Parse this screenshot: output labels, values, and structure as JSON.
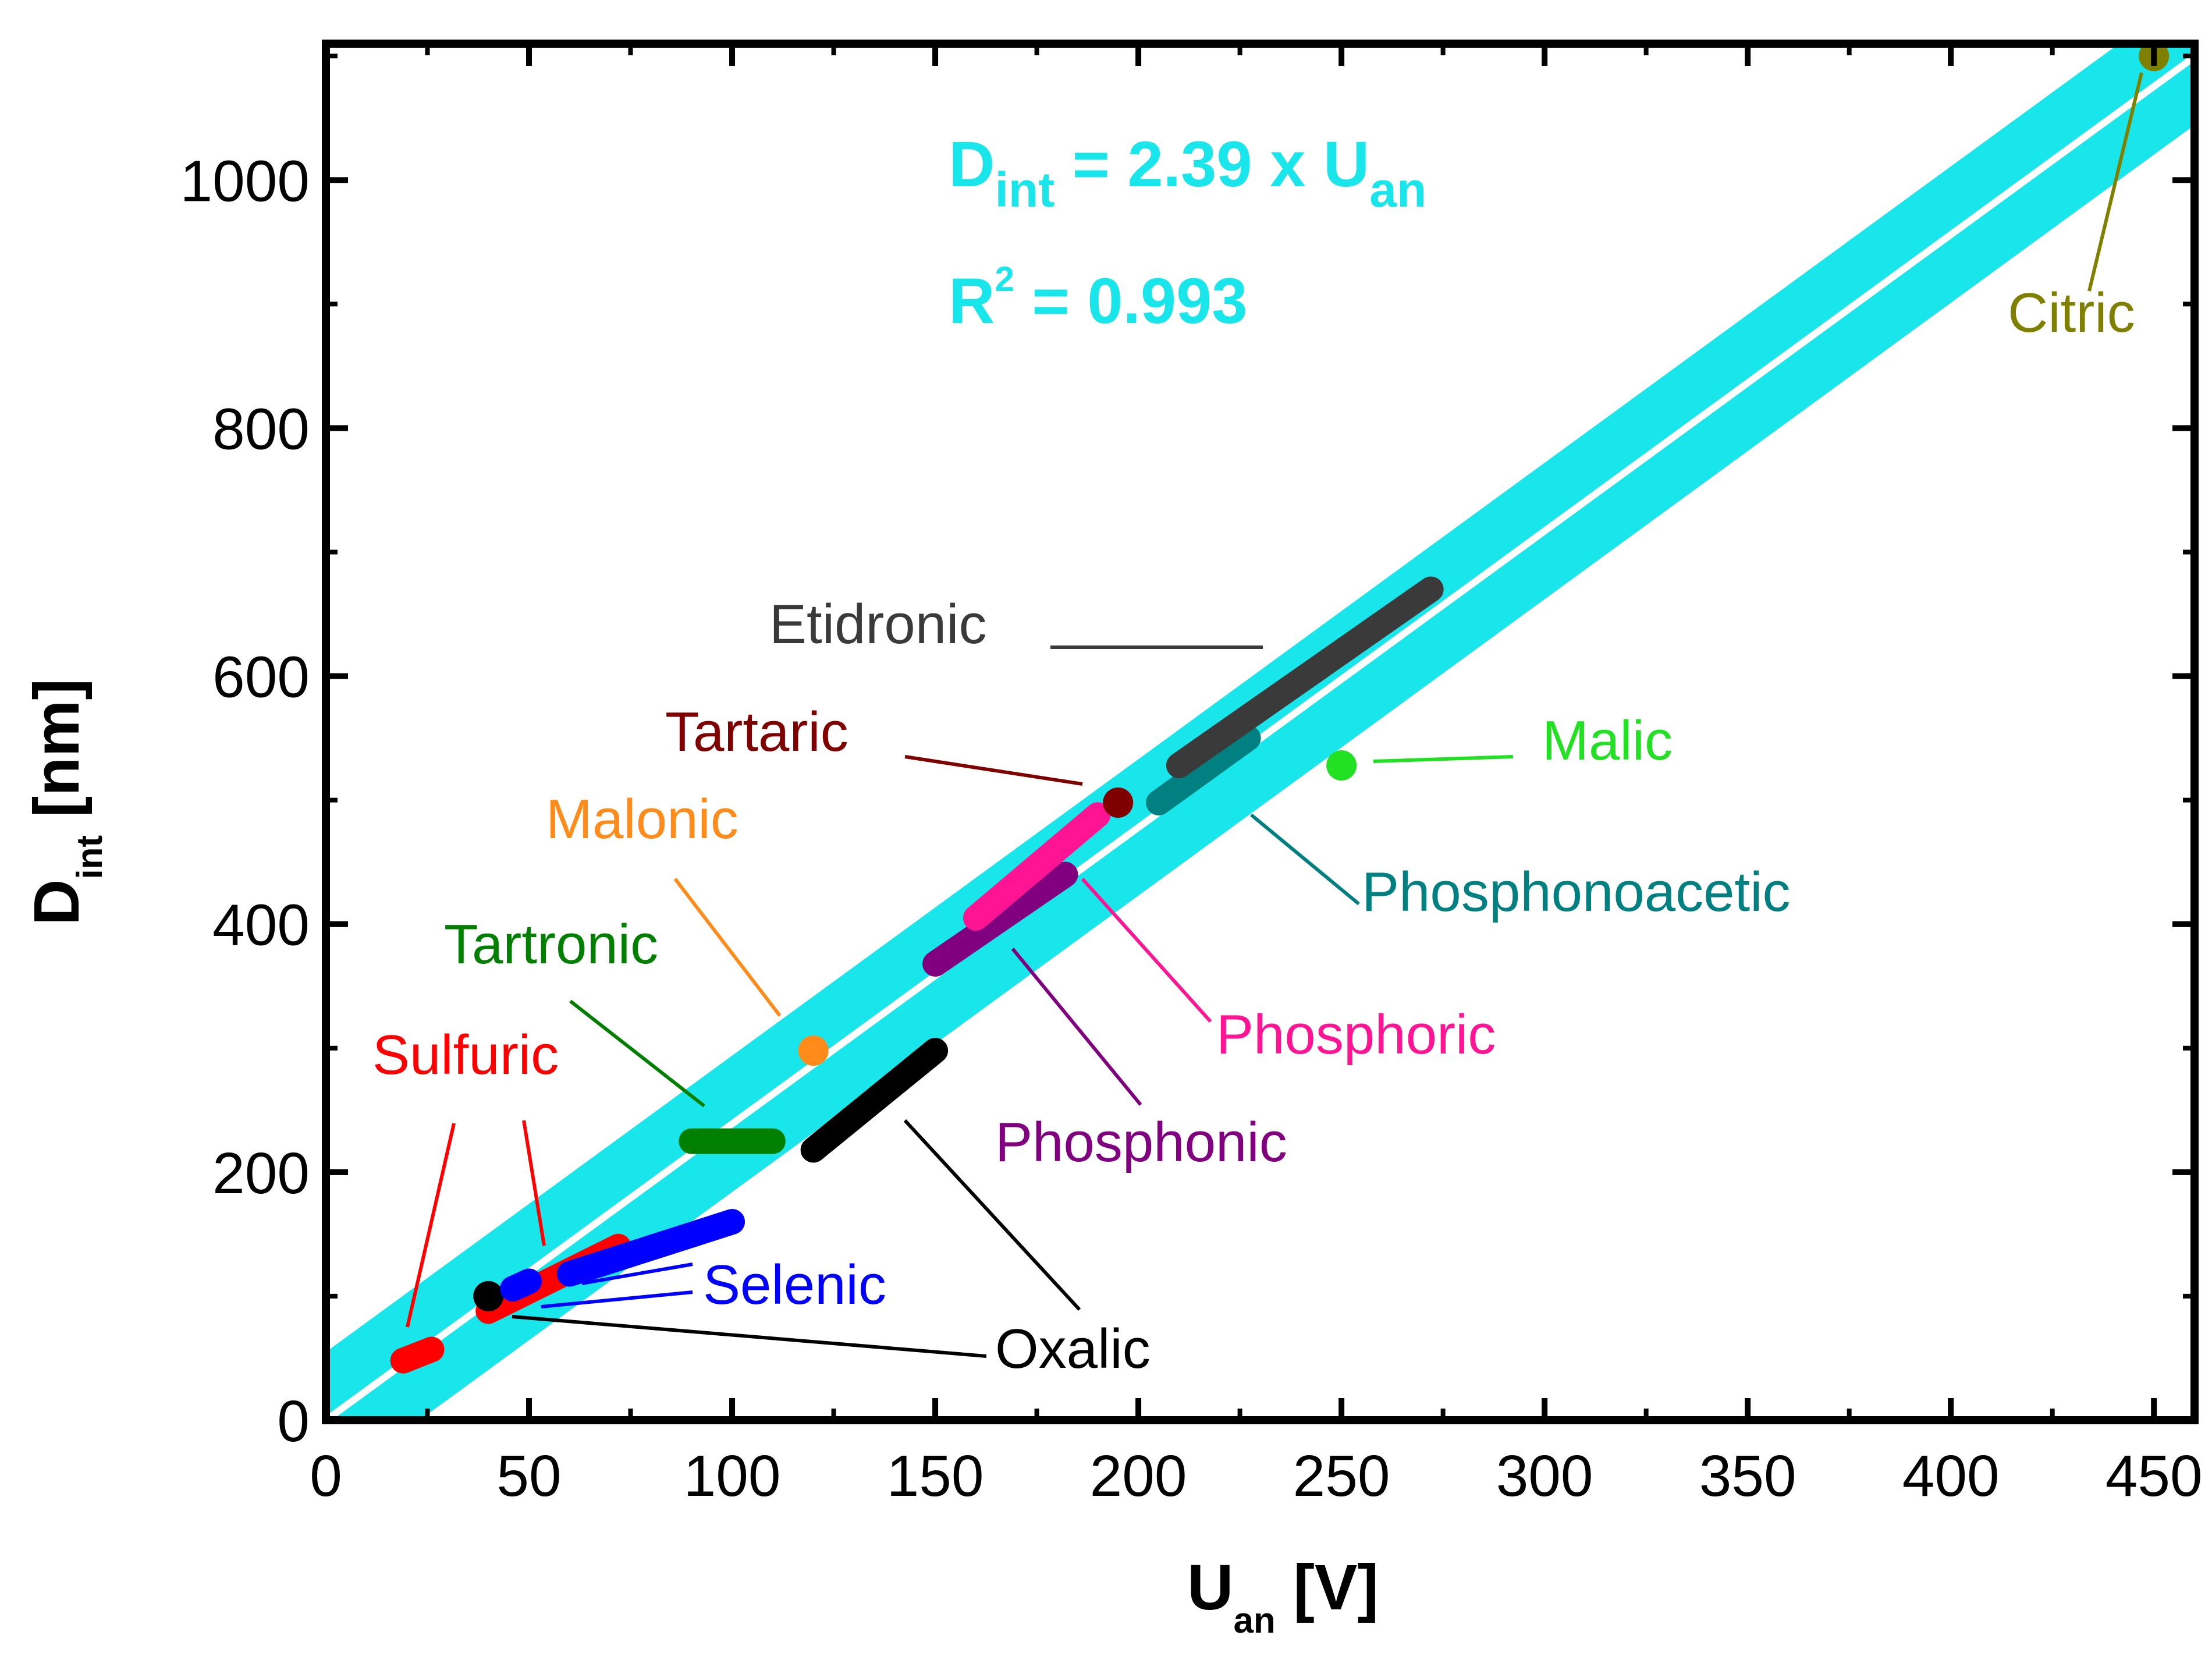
{
  "chart_data": {
    "type": "scatter",
    "title": "",
    "xlabel_main": "U",
    "xlabel_sub": "an",
    "xlabel_unit": " [V]",
    "ylabel_main": "D",
    "ylabel_sub": "int",
    "ylabel_unit": " [nm]",
    "xlim": [
      0,
      460
    ],
    "ylim": [
      0,
      1110
    ],
    "xticks": [
      0,
      50,
      100,
      150,
      200,
      250,
      300,
      350,
      400,
      450
    ],
    "yticks": [
      0,
      200,
      400,
      600,
      800,
      1000
    ],
    "grid": false,
    "fit": {
      "slope": 2.39,
      "band_halfwidth_nm": 55,
      "equation_parts": {
        "main1": "D",
        "sub1": "int",
        "main2": " = 2.39 x U",
        "sub2": "an"
      },
      "r2_parts": {
        "r": "R",
        "sup": "2",
        "rest": " = 0.993"
      },
      "band_color": "#19e6ea",
      "line_color": "#ffffff"
    },
    "series": [
      {
        "name": "Sulfuric",
        "color": "#ff0000",
        "segments": [
          {
            "x": [
              19,
              26
            ],
            "y": [
              48,
              57
            ]
          },
          {
            "x": [
              40,
              72
            ],
            "y": [
              88,
              140
            ]
          }
        ]
      },
      {
        "name": "Oxalic",
        "color": "#000000",
        "segments": [
          {
            "x": [
              40,
              40
            ],
            "y": [
              100,
              100
            ]
          },
          {
            "x": [
              120,
              150
            ],
            "y": [
              218,
              298
            ]
          }
        ]
      },
      {
        "name": "Selenic",
        "color": "#0000ff",
        "segments": [
          {
            "x": [
              46,
              50
            ],
            "y": [
              106,
              112
            ]
          },
          {
            "x": [
              60,
              100
            ],
            "y": [
              118,
              160
            ]
          }
        ]
      },
      {
        "name": "Tartronic",
        "color": "#007f00",
        "segments": [
          {
            "x": [
              90,
              110
            ],
            "y": [
              225,
              225
            ]
          }
        ]
      },
      {
        "name": "Malonic",
        "color": "#ff8c1a",
        "segments": [
          {
            "x": [
              120,
              120
            ],
            "y": [
              298,
              298
            ]
          }
        ]
      },
      {
        "name": "Phosphonic",
        "color": "#800080",
        "segments": [
          {
            "x": [
              150,
              182
            ],
            "y": [
              368,
              440
            ]
          }
        ]
      },
      {
        "name": "Phosphoric",
        "color": "#ff1493",
        "segments": [
          {
            "x": [
              160,
              190
            ],
            "y": [
              405,
              488
            ]
          }
        ]
      },
      {
        "name": "Tartaric",
        "color": "#800000",
        "segments": [
          {
            "x": [
              195,
              195
            ],
            "y": [
              498,
              498
            ]
          }
        ]
      },
      {
        "name": "Phosphonoacetic",
        "color": "#008080",
        "segments": [
          {
            "x": [
              205,
              227
            ],
            "y": [
              498,
              550
            ]
          }
        ]
      },
      {
        "name": "Etidronic",
        "color": "#3a3a3a",
        "segments": [
          {
            "x": [
              210,
              272
            ],
            "y": [
              528,
              670
            ]
          }
        ]
      },
      {
        "name": "Malic",
        "color": "#22e022",
        "segments": [
          {
            "x": [
              250,
              250
            ],
            "y": [
              528,
              528
            ]
          }
        ]
      },
      {
        "name": "Citric",
        "color": "#808000",
        "segments": [
          {
            "x": [
              450,
              450
            ],
            "y": [
              1100,
              1100
            ]
          }
        ]
      }
    ]
  }
}
